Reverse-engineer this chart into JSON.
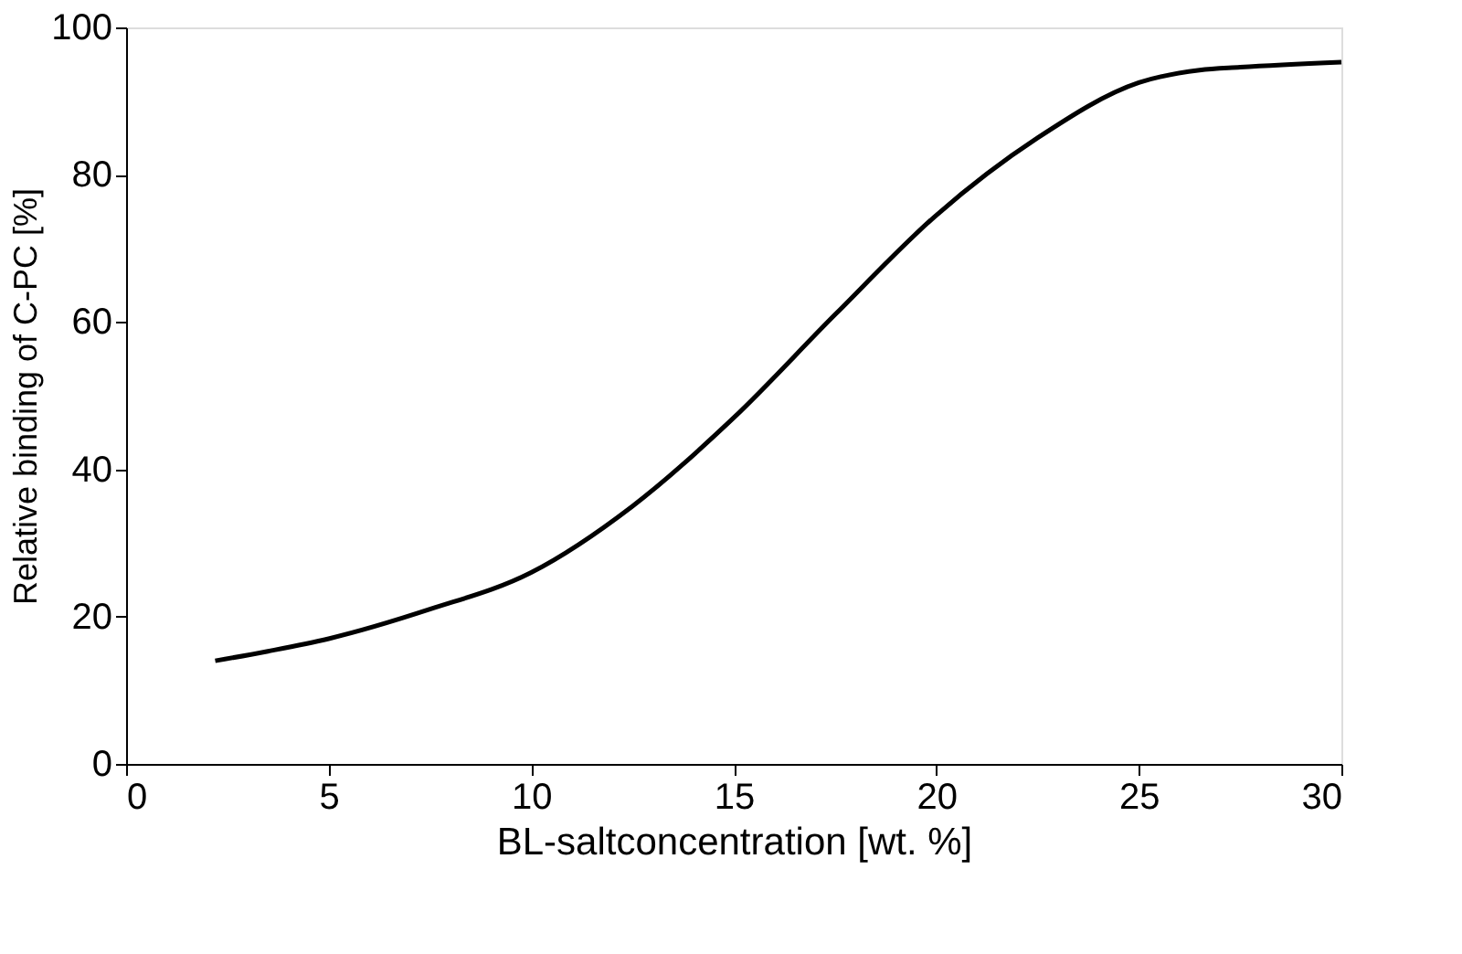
{
  "chart_data": {
    "type": "line",
    "xlabel": "BL-saltconcentration [wt. %]",
    "ylabel": "Relative binding of C-PC [%]",
    "x": [
      2.2,
      3.5,
      5,
      7.5,
      10,
      12.5,
      15,
      17.5,
      20,
      22.5,
      25,
      26.5,
      27.5,
      30
    ],
    "series": [
      {
        "color": "#000000",
        "values": [
          14,
          15.3,
          17,
          21,
          26,
          35,
          47,
          61,
          74.5,
          85,
          92.5,
          94.2,
          94.6,
          95.3
        ]
      }
    ],
    "xlim": [
      0,
      30
    ],
    "xticks": [
      0,
      5,
      10,
      15,
      20,
      25,
      30
    ],
    "ylim": [
      0,
      100
    ],
    "yticks": [
      0,
      20,
      40,
      60,
      80,
      100
    ],
    "grid": false,
    "marker": "none",
    "line_style": "solid"
  }
}
